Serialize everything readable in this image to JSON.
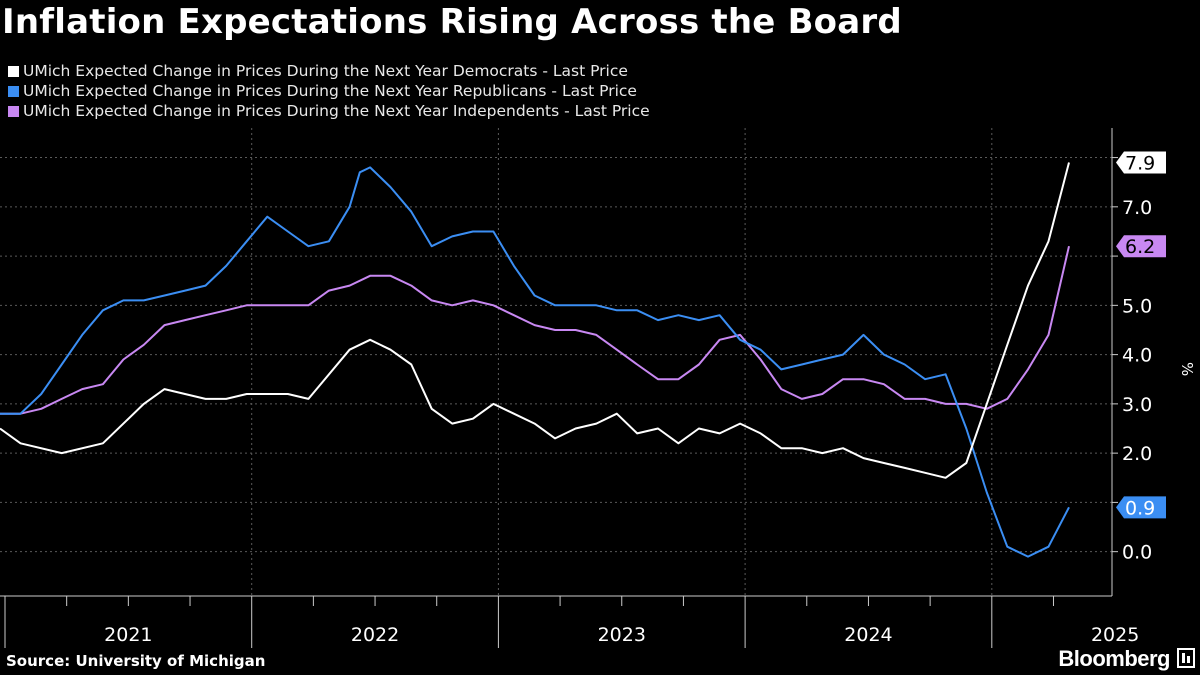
{
  "title": "Inflation Expectations Rising Across the Board",
  "source": "Source: University of Michigan",
  "brand": "Bloomberg",
  "chart_data": {
    "type": "line",
    "ylabel": "%",
    "ylim": [
      -0.9,
      8.6
    ],
    "yticks": [
      0.0,
      2.0,
      3.0,
      4.0,
      5.0,
      7.0
    ],
    "ytick_labels": [
      "0.0",
      "2.0",
      "3.0",
      "4.0",
      "5.0",
      "7.0"
    ],
    "year_labels": [
      {
        "label": "2021",
        "t": 2021.0
      },
      {
        "label": "2022",
        "t": 2022.0
      },
      {
        "label": "2023",
        "t": 2023.0
      },
      {
        "label": "2024",
        "t": 2024.0
      },
      {
        "label": "2025",
        "t": 2025.0
      }
    ],
    "grid": true,
    "series": [
      {
        "name": "UMich Expected Change in Prices During the Next Year Democrats - Last Price",
        "color": "#ffffff",
        "last_label": "7.9",
        "points": [
          [
            2020.5,
            2.5
          ],
          [
            2020.583,
            2.2
          ],
          [
            2020.75,
            2.0
          ],
          [
            2020.917,
            2.2
          ],
          [
            2021.083,
            3.0
          ],
          [
            2021.167,
            3.3
          ],
          [
            2021.333,
            3.1
          ],
          [
            2021.417,
            3.1
          ],
          [
            2021.5,
            3.2
          ],
          [
            2021.667,
            3.2
          ],
          [
            2021.75,
            3.1
          ],
          [
            2021.917,
            4.1
          ],
          [
            2022.0,
            4.3
          ],
          [
            2022.083,
            4.1
          ],
          [
            2022.167,
            3.8
          ],
          [
            2022.25,
            2.9
          ],
          [
            2022.333,
            2.6
          ],
          [
            2022.417,
            2.7
          ],
          [
            2022.5,
            3.0
          ],
          [
            2022.583,
            2.8
          ],
          [
            2022.667,
            2.6
          ],
          [
            2022.75,
            2.3
          ],
          [
            2022.833,
            2.5
          ],
          [
            2022.917,
            2.6
          ],
          [
            2023.0,
            2.8
          ],
          [
            2023.083,
            2.4
          ],
          [
            2023.167,
            2.5
          ],
          [
            2023.25,
            2.2
          ],
          [
            2023.333,
            2.5
          ],
          [
            2023.417,
            2.4
          ],
          [
            2023.5,
            2.6
          ],
          [
            2023.583,
            2.4
          ],
          [
            2023.667,
            2.1
          ],
          [
            2023.75,
            2.1
          ],
          [
            2023.833,
            2.0
          ],
          [
            2023.917,
            2.1
          ],
          [
            2024.0,
            1.9
          ],
          [
            2024.083,
            1.8
          ],
          [
            2024.167,
            1.7
          ],
          [
            2024.25,
            1.6
          ],
          [
            2024.333,
            1.5
          ],
          [
            2024.417,
            1.8
          ],
          [
            2024.5,
            3.0
          ],
          [
            2024.583,
            4.2
          ],
          [
            2024.667,
            5.4
          ],
          [
            2024.75,
            6.3
          ],
          [
            2024.833,
            7.9
          ]
        ]
      },
      {
        "name": "UMich Expected Change in Prices During the Next Year Republicans - Last Price",
        "color": "#3b8ef3",
        "last_label": "0.9",
        "points": [
          [
            2020.5,
            2.8
          ],
          [
            2020.583,
            2.8
          ],
          [
            2020.667,
            3.2
          ],
          [
            2020.75,
            3.8
          ],
          [
            2020.833,
            4.4
          ],
          [
            2020.917,
            4.9
          ],
          [
            2021.0,
            5.1
          ],
          [
            2021.083,
            5.1
          ],
          [
            2021.167,
            5.2
          ],
          [
            2021.25,
            5.3
          ],
          [
            2021.333,
            5.4
          ],
          [
            2021.417,
            5.8
          ],
          [
            2021.5,
            6.3
          ],
          [
            2021.5833,
            6.8
          ],
          [
            2021.667,
            6.5
          ],
          [
            2021.75,
            6.2
          ],
          [
            2021.833,
            6.3
          ],
          [
            2021.917,
            7.0
          ],
          [
            2021.9583,
            7.7
          ],
          [
            2022.0,
            7.8
          ],
          [
            2022.083,
            7.4
          ],
          [
            2022.167,
            6.9
          ],
          [
            2022.25,
            6.2
          ],
          [
            2022.333,
            6.4
          ],
          [
            2022.417,
            6.5
          ],
          [
            2022.5,
            6.5
          ],
          [
            2022.583,
            5.8
          ],
          [
            2022.667,
            5.2
          ],
          [
            2022.75,
            5.0
          ],
          [
            2022.833,
            5.0
          ],
          [
            2022.917,
            5.0
          ],
          [
            2023.0,
            4.9
          ],
          [
            2023.083,
            4.9
          ],
          [
            2023.167,
            4.7
          ],
          [
            2023.25,
            4.8
          ],
          [
            2023.333,
            4.7
          ],
          [
            2023.417,
            4.8
          ],
          [
            2023.5,
            4.3
          ],
          [
            2023.583,
            4.1
          ],
          [
            2023.667,
            3.7
          ],
          [
            2023.75,
            3.8
          ],
          [
            2023.833,
            3.9
          ],
          [
            2023.917,
            4.0
          ],
          [
            2024.0,
            4.4
          ],
          [
            2024.083,
            4.0
          ],
          [
            2024.167,
            3.8
          ],
          [
            2024.25,
            3.5
          ],
          [
            2024.333,
            3.6
          ],
          [
            2024.417,
            2.5
          ],
          [
            2024.5,
            1.2
          ],
          [
            2024.583,
            0.1
          ],
          [
            2024.667,
            -0.1
          ],
          [
            2024.75,
            0.1
          ],
          [
            2024.833,
            0.9
          ]
        ]
      },
      {
        "name": "UMich Expected Change in Prices During the Next Year Independents - Last Price",
        "color": "#c888f2",
        "last_label": "6.2",
        "points": [
          [
            2020.5,
            2.8
          ],
          [
            2020.583,
            2.8
          ],
          [
            2020.667,
            2.9
          ],
          [
            2020.75,
            3.1
          ],
          [
            2020.833,
            3.3
          ],
          [
            2020.917,
            3.4
          ],
          [
            2021.0,
            3.9
          ],
          [
            2021.083,
            4.2
          ],
          [
            2021.167,
            4.6
          ],
          [
            2021.25,
            4.7
          ],
          [
            2021.333,
            4.8
          ],
          [
            2021.417,
            4.9
          ],
          [
            2021.5,
            5.0
          ],
          [
            2021.583,
            5.0
          ],
          [
            2021.667,
            5.0
          ],
          [
            2021.75,
            5.0
          ],
          [
            2021.833,
            5.3
          ],
          [
            2021.917,
            5.4
          ],
          [
            2022.0,
            5.6
          ],
          [
            2022.083,
            5.6
          ],
          [
            2022.167,
            5.4
          ],
          [
            2022.25,
            5.1
          ],
          [
            2022.333,
            5.0
          ],
          [
            2022.417,
            5.1
          ],
          [
            2022.5,
            5.0
          ],
          [
            2022.583,
            4.8
          ],
          [
            2022.667,
            4.6
          ],
          [
            2022.75,
            4.5
          ],
          [
            2022.833,
            4.5
          ],
          [
            2022.917,
            4.4
          ],
          [
            2023.0,
            4.1
          ],
          [
            2023.083,
            3.8
          ],
          [
            2023.167,
            3.5
          ],
          [
            2023.25,
            3.5
          ],
          [
            2023.333,
            3.8
          ],
          [
            2023.417,
            4.3
          ],
          [
            2023.5,
            4.4
          ],
          [
            2023.583,
            3.9
          ],
          [
            2023.667,
            3.3
          ],
          [
            2023.75,
            3.1
          ],
          [
            2023.833,
            3.2
          ],
          [
            2023.917,
            3.5
          ],
          [
            2024.0,
            3.5
          ],
          [
            2024.083,
            3.4
          ],
          [
            2024.167,
            3.1
          ],
          [
            2024.25,
            3.1
          ],
          [
            2024.333,
            3.0
          ],
          [
            2024.417,
            3.0
          ],
          [
            2024.5,
            2.9
          ],
          [
            2024.583,
            3.1
          ],
          [
            2024.667,
            3.7
          ],
          [
            2024.75,
            4.4
          ],
          [
            2024.833,
            6.2
          ]
        ]
      }
    ]
  }
}
